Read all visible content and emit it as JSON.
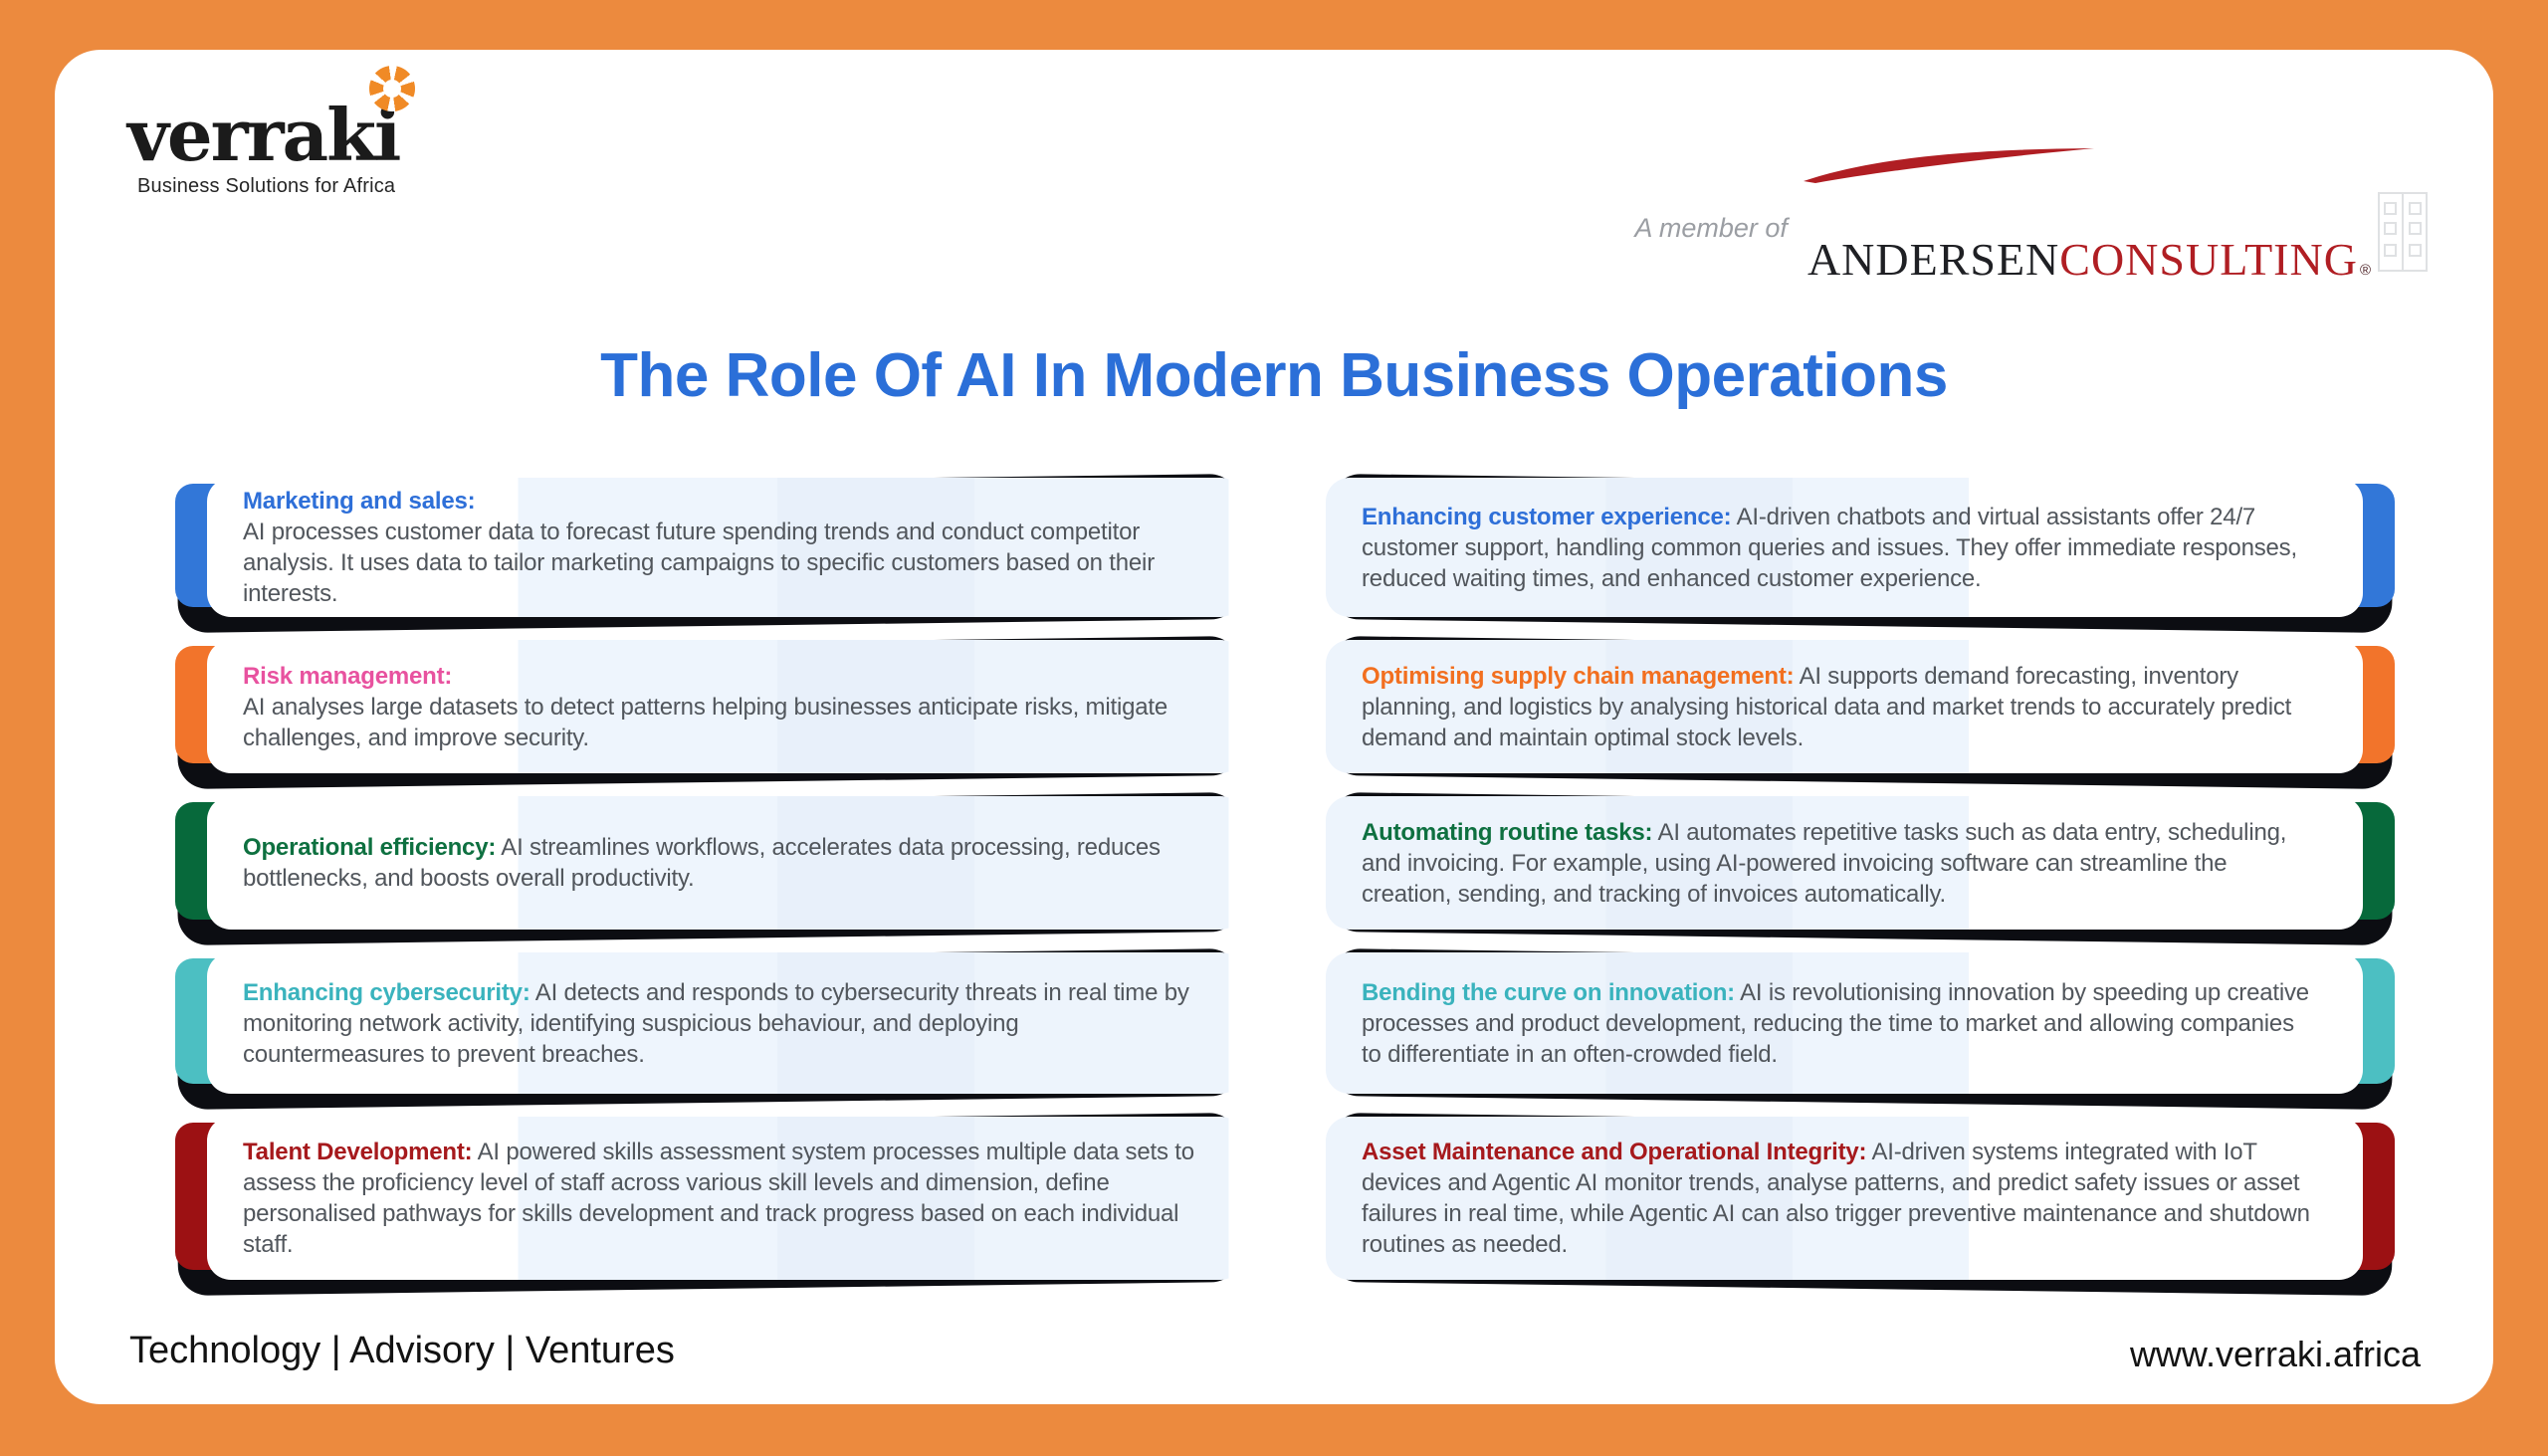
{
  "colors": {
    "background_orange": "#EC8A3E",
    "title_blue": "#2B6FD8",
    "body_text_gray": "#51565c",
    "card_shadow_black": "#0c0d12",
    "andersen_red": "#B01E23",
    "verraki_orange": "#F08A26"
  },
  "brand": {
    "wordmark": "verraki",
    "tagline": "Business Solutions for Africa",
    "member_prefix": "A member of",
    "andersen": "ANDERSEN",
    "consulting": "CONSULTING",
    "registered_mark": "®"
  },
  "title": "The Role Of AI In Modern Business Operations",
  "cards": {
    "left": [
      {
        "heading": "Marketing and sales:",
        "heading_color": "#2E6FD8",
        "tab_color": "#3277D8",
        "heading_layout": "stacked",
        "body": "AI processes customer data to forecast future spending trends and conduct competitor analysis. It uses data to tailor marketing campaigns to specific customers based on their interests."
      },
      {
        "heading": "Risk management:",
        "heading_color": "#E8529F",
        "tab_color": "#F2742B",
        "heading_layout": "stacked",
        "body": "AI analyses large datasets to detect patterns helping  businesses anticipate risks, mitigate challenges, and improve security."
      },
      {
        "heading": "Operational efficiency:",
        "heading_color": "#0E7040",
        "tab_color": "#07693B",
        "heading_layout": "inline",
        "body": "AI streamlines workflows, accelerates data processing, reduces bottlenecks, and boosts overall productivity."
      },
      {
        "heading": "Enhancing cybersecurity:",
        "heading_color": "#3AB3BD",
        "tab_color": "#4CBFC2",
        "heading_layout": "inline",
        "body": "AI detects and responds to cybersecurity threats in real time by monitoring network activity, identifying suspicious behaviour, and deploying countermeasures to prevent breaches."
      },
      {
        "heading": "Talent Development:",
        "heading_color": "#A6191C",
        "tab_color": "#9C1113",
        "heading_layout": "inline",
        "body": "AI powered skills assessment system processes multiple data sets to assess the proficiency level of  staff across various skill levels and dimension, define personalised pathways for skills development and track  progress based on each individual staff."
      }
    ],
    "right": [
      {
        "heading": "Enhancing customer experience:",
        "heading_color": "#2E6FD8",
        "tab_color": "#3277D8",
        "heading_layout": "inline",
        "body": "AI-driven chatbots and virtual assistants offer 24/7 customer support, handling common queries and issues. They offer immediate responses, reduced waiting times, and enhanced customer experience."
      },
      {
        "heading": "Optimising supply chain management:",
        "heading_color": "#F26F1F",
        "tab_color": "#F2742B",
        "heading_layout": "inline",
        "body": "AI supports demand forecasting, inventory planning, and logistics by analysing historical data and market trends to accurately predict demand and maintain optimal stock levels."
      },
      {
        "heading": "Automating routine tasks:",
        "heading_color": "#0E7040",
        "tab_color": "#07693B",
        "heading_layout": "inline",
        "body": "AI automates repetitive tasks such as data entry, scheduling, and invoicing. For example, using AI-powered invoicing software can streamline the creation, sending, and tracking of invoices automatically."
      },
      {
        "heading": "Bending the curve on innovation:",
        "heading_color": "#3AB3BD",
        "tab_color": "#4CBFC2",
        "heading_layout": "inline",
        "body": "AI is revolutionising innovation by speeding up creative processes and product development, reducing the time to market and allowing companies to differentiate in an often-crowded field."
      },
      {
        "heading": "Asset Maintenance and Operational Integrity:",
        "heading_color": "#A6191C",
        "tab_color": "#9C1113",
        "heading_layout": "inline",
        "body": "AI-driven systems integrated with IoT devices and Agentic AI monitor trends, analyse patterns, and predict safety issues or asset failures in real time, while Agentic AI can also trigger preventive maintenance and shutdown routines as needed."
      }
    ]
  },
  "footer": {
    "services": "Technology | Advisory | Ventures",
    "website": "www.verraki.africa"
  }
}
